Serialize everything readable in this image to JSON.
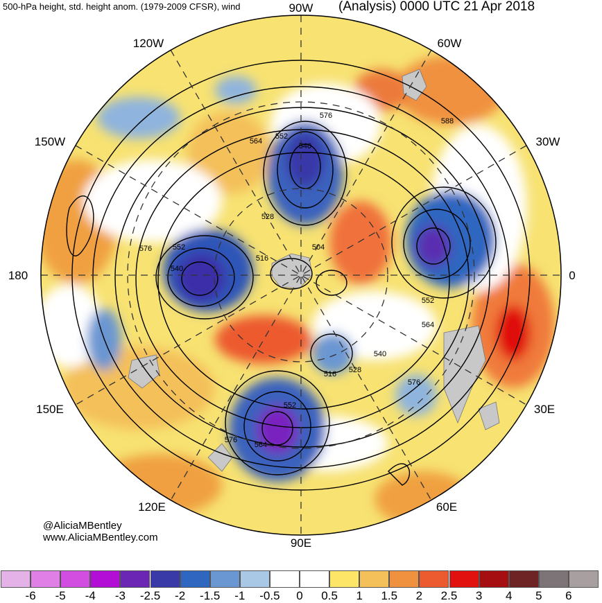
{
  "header": {
    "title_left": "500-hPa height, std. height anom. (1979-2009 CFSR), wind",
    "title_right": "(Analysis) 0000 UTC 21 Apr 2018"
  },
  "map": {
    "projection": "polar stereographic, North Pole",
    "longitude_labels": {
      "top": "90W",
      "upper_left_1": "120W",
      "upper_right_1": "60W",
      "upper_left_2": "150W",
      "upper_right_2": "30W",
      "left": "180",
      "right": "0",
      "lower_left_1": "150E",
      "lower_right_1": "30E",
      "lower_left_2": "120E",
      "lower_right_2": "60E",
      "bottom": "90E"
    },
    "contour_labels": [
      "576",
      "588",
      "564",
      "552",
      "540",
      "528",
      "576",
      "552",
      "540",
      "504",
      "516",
      "552",
      "564",
      "540",
      "528",
      "516",
      "576",
      "552",
      "564",
      "576"
    ]
  },
  "credits": {
    "handle": "@AliciaMBentley",
    "website": "www.AliciaMBentley.com"
  },
  "colorbar": {
    "ticks": [
      "-6",
      "-5",
      "-4",
      "-3",
      "-2.5",
      "-2",
      "-1.5",
      "-1",
      "-0.5",
      "0",
      "0.5",
      "1",
      "1.5",
      "2",
      "2.5",
      "3",
      "4",
      "5",
      "6"
    ],
    "colors": [
      "#e5b2e8",
      "#e07fe6",
      "#d24ee0",
      "#b30ed6",
      "#6b26b3",
      "#3939a8",
      "#2f66c0",
      "#6a96d2",
      "#a8c8e6",
      "#ffffff",
      "#ffffff",
      "#fde567",
      "#f4c05a",
      "#f0913f",
      "#ec5a2f",
      "#e0110f",
      "#a60f11",
      "#6e2424",
      "#7c7476",
      "#a8a0a0"
    ]
  }
}
